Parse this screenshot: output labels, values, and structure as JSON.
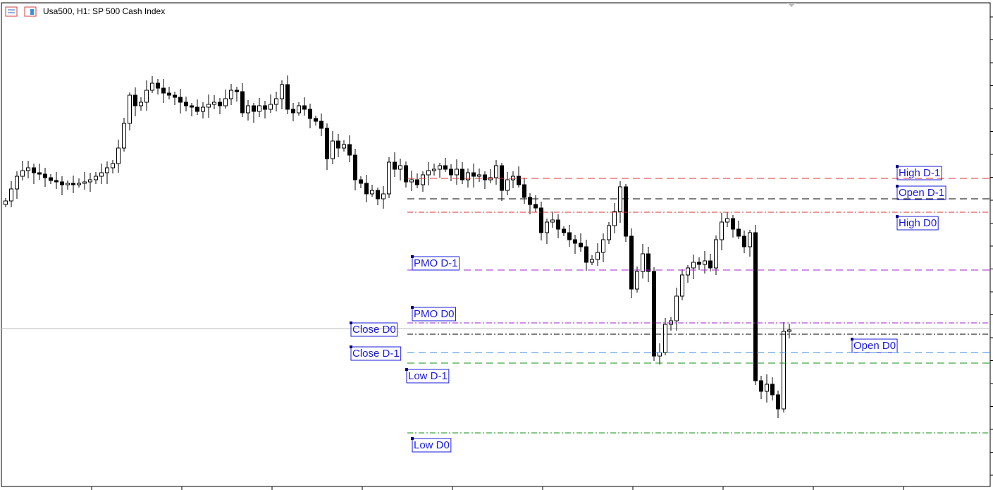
{
  "header": {
    "title": "Usa500, H1:  SP 500 Cash Index"
  },
  "levels": [
    {
      "label": "High D-1",
      "color": "#e03030"
    },
    {
      "label": "Open D-1",
      "color": "#000000"
    },
    {
      "label": "High D0",
      "color": "#e03030"
    },
    {
      "label": "PMO D-1",
      "color": "#a020d0"
    },
    {
      "label": "PMO D0",
      "color": "#a020d0"
    },
    {
      "label": "Close D0",
      "color": "#9a9a9a"
    },
    {
      "label": "Open D0",
      "color": "#000000"
    },
    {
      "label": "Close D-1",
      "color": "#3a8ee0"
    },
    {
      "label": "Low D-1",
      "color": "#109010"
    },
    {
      "label": "Low D0",
      "color": "#109010"
    }
  ]
}
